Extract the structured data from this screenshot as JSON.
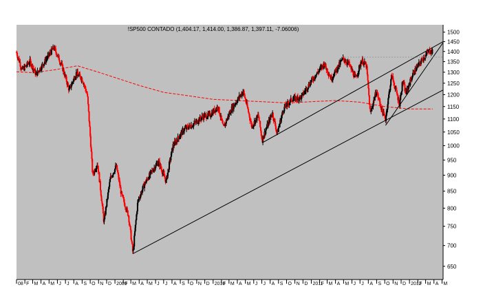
{
  "chart_data": {
    "type": "candlestick",
    "title": "!SP500 CONTADO (1,404.17, 1,414.00, 1,386.87, 1,397.11, -7.06006)",
    "y_scale": "log",
    "ylim": [
      620,
      1540
    ],
    "y_ticks": [
      650,
      700,
      750,
      800,
      850,
      900,
      950,
      1000,
      1050,
      1100,
      1150,
      1200,
      1250,
      1300,
      1350,
      1400,
      1450,
      1500
    ],
    "x_range": [
      "2008-01-01",
      "2012-05-05"
    ],
    "x_tick_labels": [
      {
        "date": "2008-01-01",
        "label": "08"
      },
      {
        "date": "2008-02-01",
        "label": "F"
      },
      {
        "date": "2008-03-01",
        "label": "M"
      },
      {
        "date": "2008-04-01",
        "label": "A"
      },
      {
        "date": "2008-05-01",
        "label": "M"
      },
      {
        "date": "2008-06-01",
        "label": "J"
      },
      {
        "date": "2008-07-01",
        "label": "J"
      },
      {
        "date": "2008-08-01",
        "label": "A"
      },
      {
        "date": "2008-09-01",
        "label": "S"
      },
      {
        "date": "2008-10-01",
        "label": "O"
      },
      {
        "date": "2008-11-01",
        "label": "N"
      },
      {
        "date": "2008-12-01",
        "label": "D"
      },
      {
        "date": "2009-01-01",
        "label": "2009"
      },
      {
        "date": "2009-02-01",
        "label": "F"
      },
      {
        "date": "2009-03-01",
        "label": "M"
      },
      {
        "date": "2009-04-01",
        "label": "A"
      },
      {
        "date": "2009-05-01",
        "label": "M"
      },
      {
        "date": "2009-06-01",
        "label": "J"
      },
      {
        "date": "2009-07-01",
        "label": "J"
      },
      {
        "date": "2009-08-01",
        "label": "A"
      },
      {
        "date": "2009-09-01",
        "label": "S"
      },
      {
        "date": "2009-10-01",
        "label": "O"
      },
      {
        "date": "2009-11-01",
        "label": "N"
      },
      {
        "date": "2009-12-01",
        "label": "D"
      },
      {
        "date": "2010-01-01",
        "label": "2010"
      },
      {
        "date": "2010-02-01",
        "label": "F"
      },
      {
        "date": "2010-03-01",
        "label": "M"
      },
      {
        "date": "2010-04-01",
        "label": "A"
      },
      {
        "date": "2010-05-01",
        "label": "M"
      },
      {
        "date": "2010-06-01",
        "label": "J"
      },
      {
        "date": "2010-07-01",
        "label": "J"
      },
      {
        "date": "2010-08-01",
        "label": "A"
      },
      {
        "date": "2010-09-01",
        "label": "S"
      },
      {
        "date": "2010-10-01",
        "label": "O"
      },
      {
        "date": "2010-11-01",
        "label": "N"
      },
      {
        "date": "2010-12-01",
        "label": "D"
      },
      {
        "date": "2011-01-01",
        "label": "2011"
      },
      {
        "date": "2011-02-01",
        "label": "F"
      },
      {
        "date": "2011-03-01",
        "label": "M"
      },
      {
        "date": "2011-04-01",
        "label": "A"
      },
      {
        "date": "2011-05-01",
        "label": "M"
      },
      {
        "date": "2011-06-01",
        "label": "J"
      },
      {
        "date": "2011-07-01",
        "label": "J"
      },
      {
        "date": "2011-08-01",
        "label": "A"
      },
      {
        "date": "2011-09-01",
        "label": "S"
      },
      {
        "date": "2011-10-01",
        "label": "O"
      },
      {
        "date": "2011-11-01",
        "label": "N"
      },
      {
        "date": "2011-12-01",
        "label": "D"
      },
      {
        "date": "2012-01-01",
        "label": "2012"
      },
      {
        "date": "2012-02-01",
        "label": "F"
      },
      {
        "date": "2012-03-01",
        "label": "M"
      },
      {
        "date": "2012-04-01",
        "label": "A"
      },
      {
        "date": "2012-05-01",
        "label": "M"
      }
    ],
    "series": [
      {
        "kind": "price",
        "up_color": "#000000",
        "down_color": "#ff0000",
        "close_points": [
          [
            "2008-01-01",
            1395
          ],
          [
            "2008-01-22",
            1310
          ],
          [
            "2008-02-20",
            1350
          ],
          [
            "2008-03-14",
            1290
          ],
          [
            "2008-04-15",
            1350
          ],
          [
            "2008-05-19",
            1420
          ],
          [
            "2008-06-15",
            1340
          ],
          [
            "2008-07-15",
            1220
          ],
          [
            "2008-08-10",
            1295
          ],
          [
            "2008-09-01",
            1270
          ],
          [
            "2008-09-20",
            1200
          ],
          [
            "2008-10-10",
            900
          ],
          [
            "2008-10-28",
            940
          ],
          [
            "2008-11-21",
            760
          ],
          [
            "2008-12-15",
            890
          ],
          [
            "2009-01-06",
            930
          ],
          [
            "2009-01-25",
            840
          ],
          [
            "2009-02-20",
            780
          ],
          [
            "2009-03-09",
            680
          ],
          [
            "2009-03-27",
            820
          ],
          [
            "2009-04-20",
            870
          ],
          [
            "2009-05-20",
            915
          ],
          [
            "2009-06-12",
            945
          ],
          [
            "2009-07-10",
            880
          ],
          [
            "2009-08-05",
            1000
          ],
          [
            "2009-09-15",
            1060
          ],
          [
            "2009-10-20",
            1080
          ],
          [
            "2009-11-25",
            1110
          ],
          [
            "2009-12-20",
            1115
          ],
          [
            "2010-01-19",
            1150
          ],
          [
            "2010-02-08",
            1065
          ],
          [
            "2010-03-10",
            1140
          ],
          [
            "2010-04-23",
            1215
          ],
          [
            "2010-05-25",
            1070
          ],
          [
            "2010-06-18",
            1115
          ],
          [
            "2010-07-02",
            1020
          ],
          [
            "2010-08-09",
            1125
          ],
          [
            "2010-08-27",
            1045
          ],
          [
            "2010-09-20",
            1140
          ],
          [
            "2010-10-20",
            1180
          ],
          [
            "2010-11-25",
            1190
          ],
          [
            "2010-12-31",
            1258
          ],
          [
            "2011-02-18",
            1340
          ],
          [
            "2011-03-16",
            1270
          ],
          [
            "2011-04-29",
            1365
          ],
          [
            "2011-05-20",
            1340
          ],
          [
            "2011-06-15",
            1270
          ],
          [
            "2011-07-07",
            1355
          ],
          [
            "2011-07-25",
            1330
          ],
          [
            "2011-08-08",
            1120
          ],
          [
            "2011-08-31",
            1215
          ],
          [
            "2011-09-22",
            1130
          ],
          [
            "2011-10-04",
            1100
          ],
          [
            "2011-10-27",
            1285
          ],
          [
            "2011-11-25",
            1160
          ],
          [
            "2011-12-07",
            1260
          ],
          [
            "2011-12-19",
            1205
          ],
          [
            "2012-01-15",
            1295
          ],
          [
            "2012-02-20",
            1365
          ],
          [
            "2012-03-16",
            1405
          ],
          [
            "2012-03-27",
            1397
          ]
        ]
      },
      {
        "kind": "moving_average",
        "color": "#ff0000",
        "style": "dashed",
        "points": [
          [
            "2008-01-01",
            1302
          ],
          [
            "2008-03-01",
            1298
          ],
          [
            "2008-05-15",
            1310
          ],
          [
            "2008-08-15",
            1330
          ],
          [
            "2008-11-01",
            1300
          ],
          [
            "2009-01-15",
            1270
          ],
          [
            "2009-04-01",
            1240
          ],
          [
            "2009-07-01",
            1210
          ],
          [
            "2009-10-01",
            1195
          ],
          [
            "2010-01-01",
            1180
          ],
          [
            "2010-04-01",
            1175
          ],
          [
            "2010-07-01",
            1170
          ],
          [
            "2010-10-01",
            1165
          ],
          [
            "2011-01-01",
            1170
          ],
          [
            "2011-04-01",
            1175
          ],
          [
            "2011-07-01",
            1168
          ],
          [
            "2011-10-01",
            1150
          ],
          [
            "2012-01-01",
            1140
          ],
          [
            "2012-03-27",
            1140
          ]
        ]
      }
    ],
    "annotations": [
      {
        "kind": "trendline",
        "from": [
          "2009-03-09",
          680
        ],
        "to": [
          "2012-05-05",
          1220
        ],
        "color": "#000000"
      },
      {
        "kind": "trendline",
        "from": [
          "2010-07-02",
          1010
        ],
        "to": [
          "2012-05-05",
          1450
        ],
        "color": "#000000"
      },
      {
        "kind": "trendline",
        "from": [
          "2011-10-04",
          1075
        ],
        "to": [
          "2012-05-05",
          1445
        ],
        "color": "#000000"
      },
      {
        "kind": "hline",
        "from": "2011-04-25",
        "to": "2012-05-05",
        "value": 1372,
        "color": "#999999",
        "style": "dotted"
      }
    ],
    "grid": false,
    "background": "#c0c0c0"
  }
}
